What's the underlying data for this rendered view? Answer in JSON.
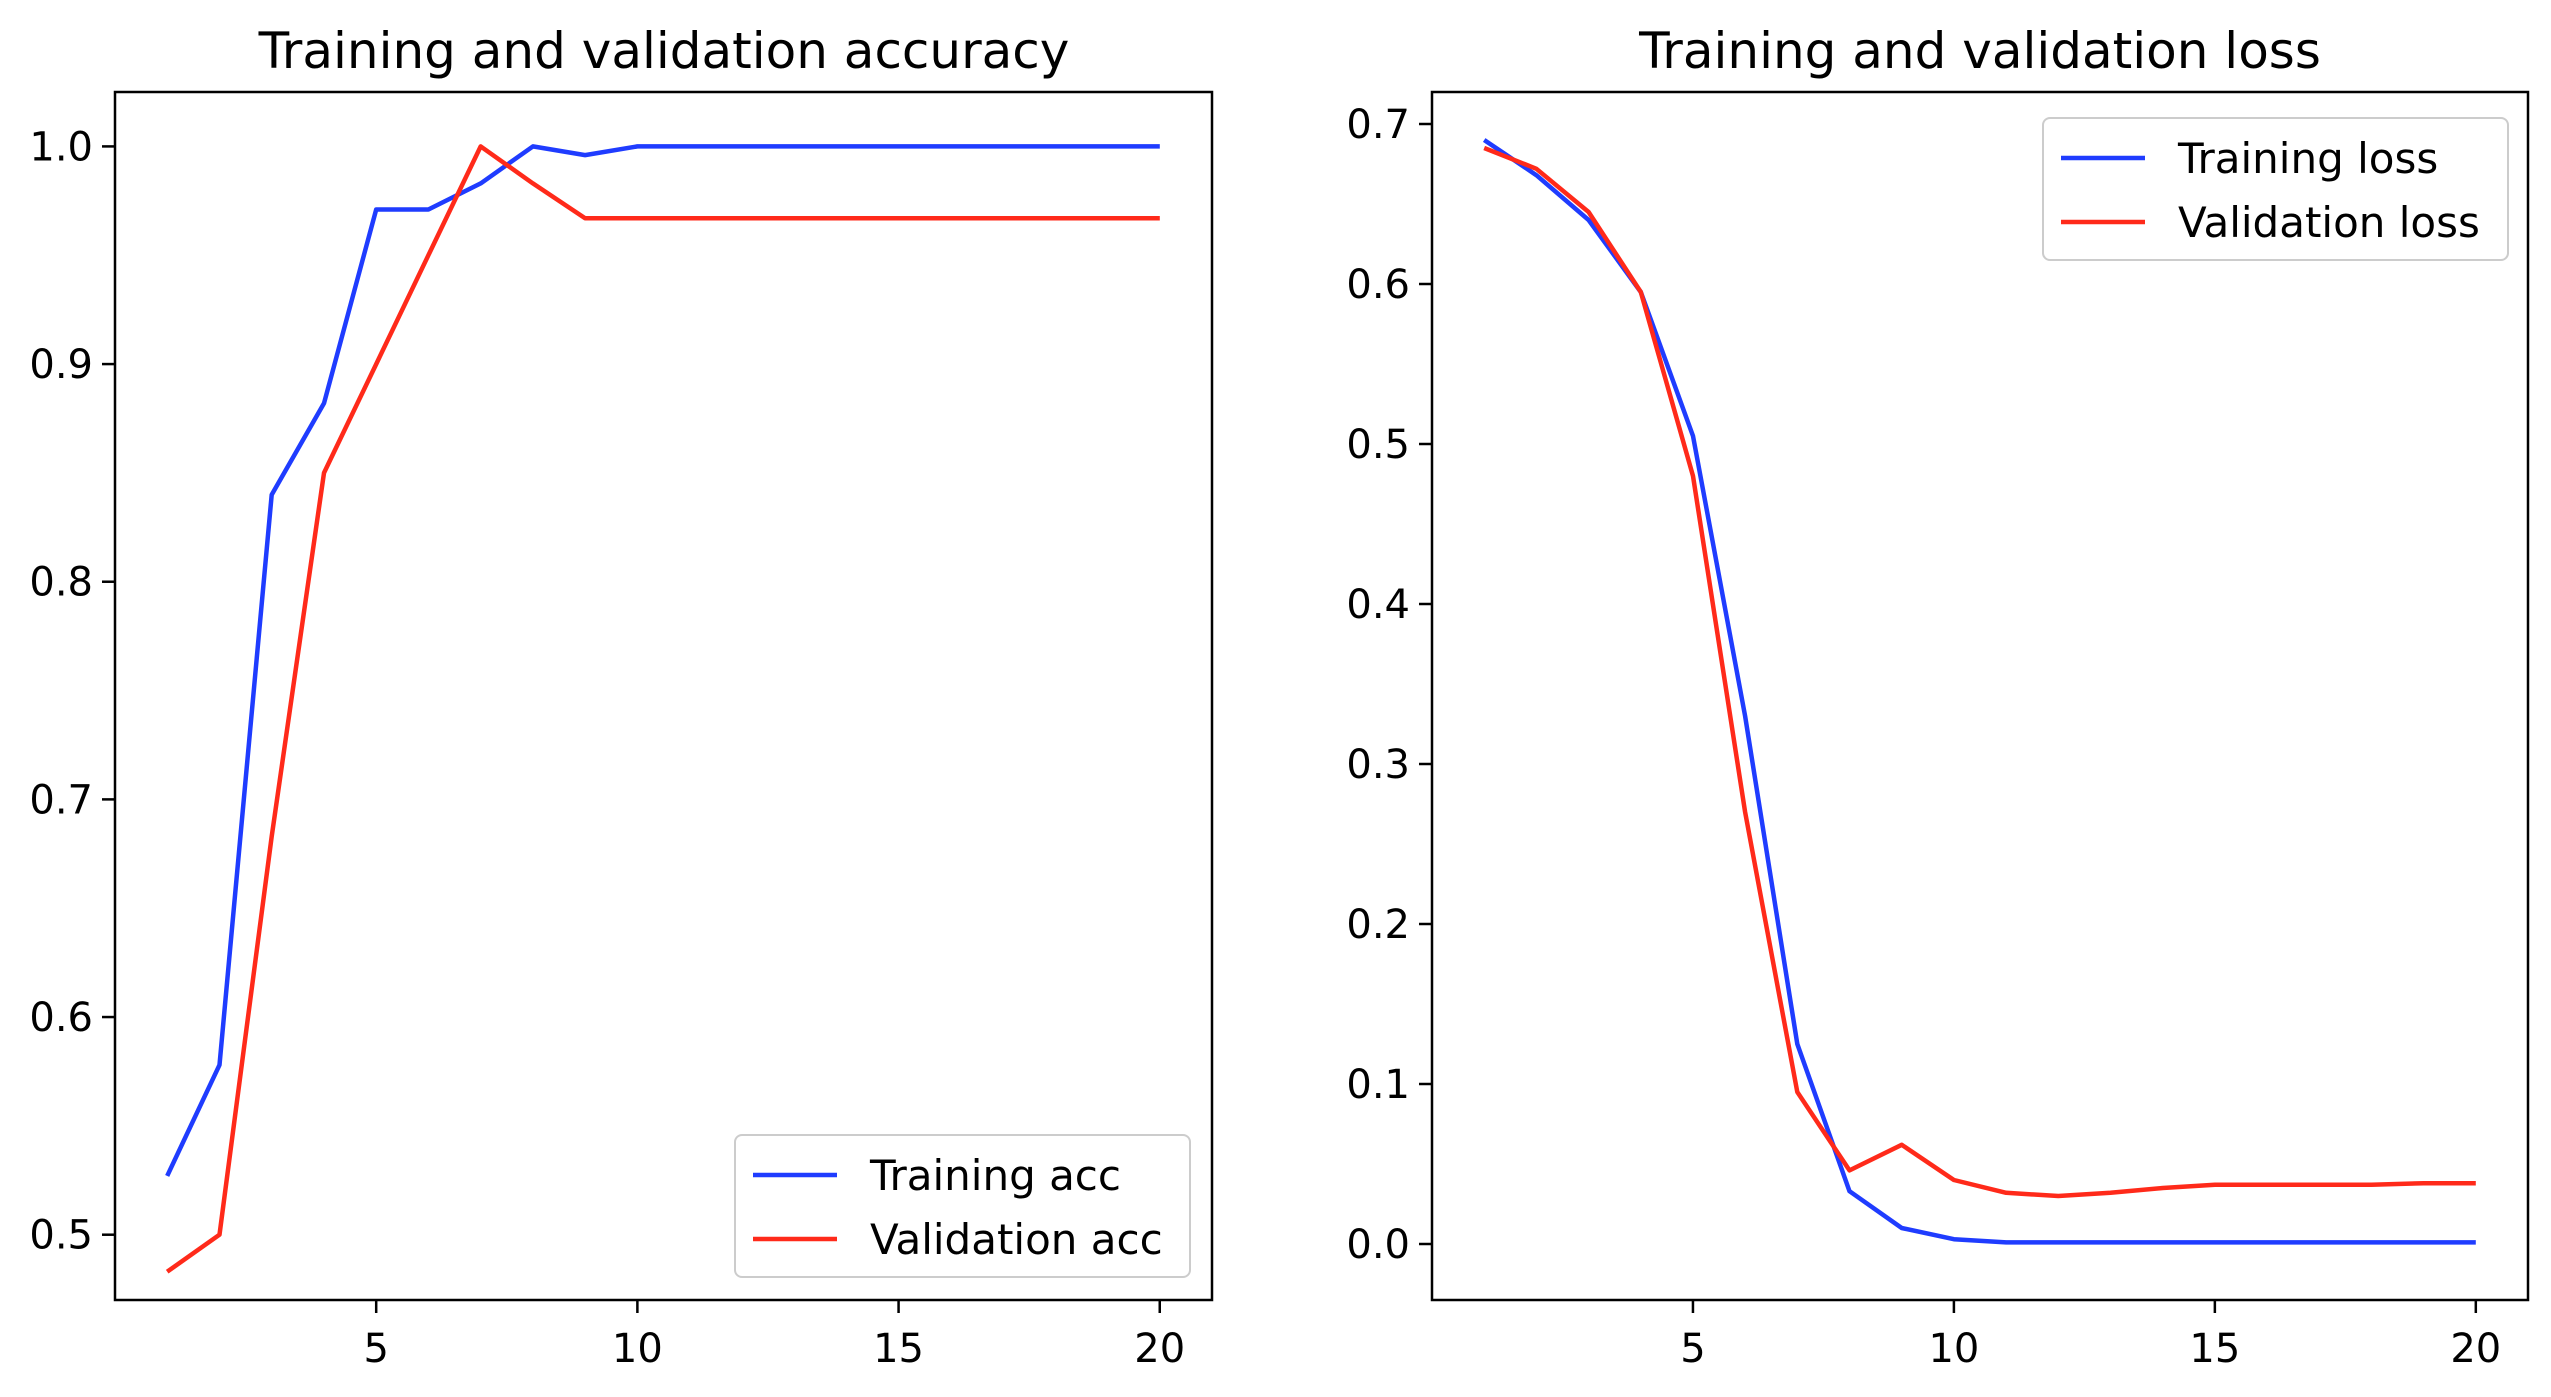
{
  "chart_data": [
    {
      "type": "line",
      "title": "Training and validation accuracy",
      "xlabel": "",
      "ylabel": "",
      "xlim": [
        0,
        21
      ],
      "ylim": [
        0.47,
        1.025
      ],
      "xticks": [
        5,
        10,
        15,
        20
      ],
      "yticks": [
        0.5,
        0.6,
        0.7,
        0.8,
        0.9,
        1.0
      ],
      "xtick_labels": [
        "5",
        "10",
        "15",
        "20"
      ],
      "ytick_labels": [
        "0.5",
        "0.6",
        "0.7",
        "0.8",
        "0.9",
        "1.0"
      ],
      "legend_position": "lower-right",
      "grid": false,
      "x": [
        1,
        2,
        3,
        4,
        5,
        6,
        7,
        8,
        9,
        10,
        11,
        12,
        13,
        14,
        15,
        16,
        17,
        18,
        19,
        20
      ],
      "series": [
        {
          "name": "Training acc",
          "color": "#1f3cff",
          "values": [
            0.527,
            0.578,
            0.84,
            0.882,
            0.971,
            0.971,
            0.983,
            1.0,
            0.996,
            1.0,
            1.0,
            1.0,
            1.0,
            1.0,
            1.0,
            1.0,
            1.0,
            1.0,
            1.0,
            1.0
          ]
        },
        {
          "name": "Validation acc",
          "color": "#ff2a1a",
          "values": [
            0.483,
            0.5,
            0.683,
            0.85,
            0.9,
            0.95,
            1.0,
            0.983,
            0.967,
            0.967,
            0.967,
            0.967,
            0.967,
            0.967,
            0.967,
            0.967,
            0.967,
            0.967,
            0.967,
            0.967
          ]
        }
      ]
    },
    {
      "type": "line",
      "title": "Training and validation loss",
      "xlabel": "",
      "ylabel": "",
      "xlim": [
        0,
        21
      ],
      "ylim": [
        -0.035,
        0.72
      ],
      "xticks": [
        5,
        10,
        15,
        20
      ],
      "yticks": [
        0.0,
        0.1,
        0.2,
        0.3,
        0.4,
        0.5,
        0.6,
        0.7
      ],
      "xtick_labels": [
        "5",
        "10",
        "15",
        "20"
      ],
      "ytick_labels": [
        "0.0",
        "0.1",
        "0.2",
        "0.3",
        "0.4",
        "0.5",
        "0.6",
        "0.7"
      ],
      "legend_position": "upper-right",
      "grid": false,
      "x": [
        1,
        2,
        3,
        4,
        5,
        6,
        7,
        8,
        9,
        10,
        11,
        12,
        13,
        14,
        15,
        16,
        17,
        18,
        19,
        20
      ],
      "series": [
        {
          "name": "Training loss",
          "color": "#1f3cff",
          "values": [
            0.69,
            0.668,
            0.64,
            0.595,
            0.505,
            0.33,
            0.125,
            0.033,
            0.01,
            0.003,
            0.001,
            0.001,
            0.001,
            0.001,
            0.001,
            0.001,
            0.001,
            0.001,
            0.001,
            0.001
          ]
        },
        {
          "name": "Validation loss",
          "color": "#ff2a1a",
          "values": [
            0.685,
            0.672,
            0.645,
            0.595,
            0.48,
            0.27,
            0.095,
            0.046,
            0.062,
            0.04,
            0.032,
            0.03,
            0.032,
            0.035,
            0.037,
            0.037,
            0.037,
            0.037,
            0.038,
            0.038
          ]
        }
      ]
    }
  ]
}
